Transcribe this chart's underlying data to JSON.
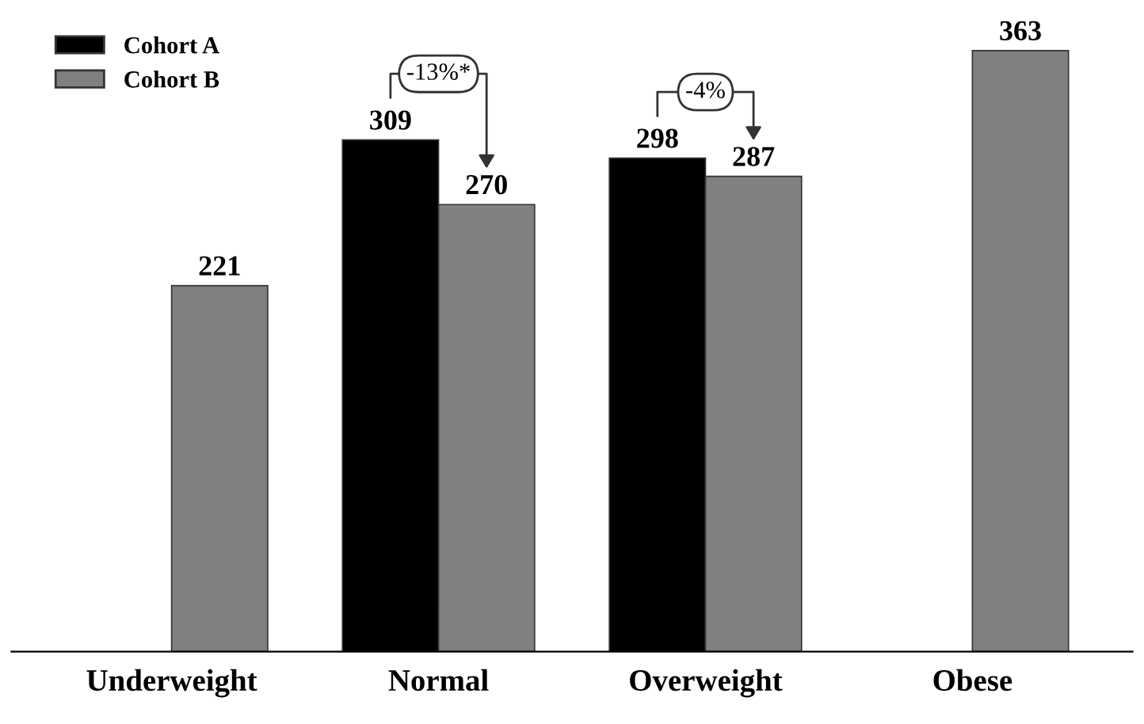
{
  "chart_data": {
    "type": "bar",
    "categories": [
      "Underweight",
      "Normal",
      "Overweight",
      "Obese"
    ],
    "series": [
      {
        "name": "Cohort A",
        "color": "#000000",
        "values": [
          null,
          309,
          298,
          null
        ]
      },
      {
        "name": "Cohort B",
        "color": "#808080",
        "values": [
          221,
          270,
          287,
          363
        ]
      }
    ],
    "data_labels": true,
    "legend": "top left",
    "tick_labels": "x",
    "grid": false,
    "annotations": [
      {
        "text": "-13%*",
        "x": "Normal",
        "y": 309
      },
      {
        "text": "-4%",
        "x": "Overweight",
        "y": 298
      }
    ]
  }
}
